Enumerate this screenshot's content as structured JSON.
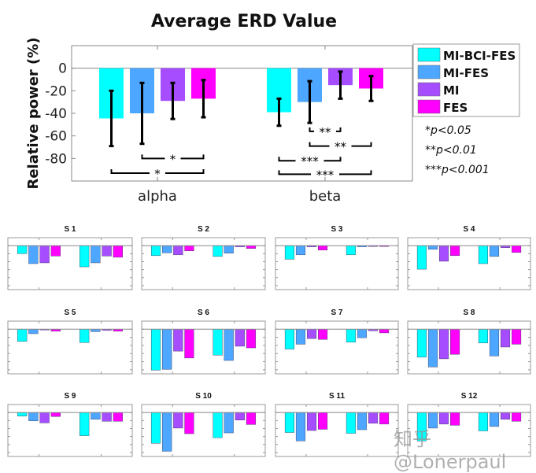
{
  "colors": {
    "MI-BCI-FES": "#00FFFF",
    "MI-FES": "#4DA6FF",
    "MI": "#A64DFF",
    "FES": "#FF00FF"
  },
  "watermark": "知乎 @Lonerpaul",
  "chart_data": [
    {
      "type": "bar",
      "title": "Average ERD Value",
      "ylabel": "Relative power (%)",
      "xlabel": "",
      "categories": [
        "alpha",
        "beta"
      ],
      "ylim": [
        -100,
        20
      ],
      "yticks": [
        0,
        -20,
        -40,
        -60,
        -80
      ],
      "grid": false,
      "legend_position": "right",
      "series": [
        {
          "name": "MI-BCI-FES",
          "values": [
            -44.5,
            -39
          ],
          "error": [
            24.5,
            12
          ]
        },
        {
          "name": "MI-FES",
          "values": [
            -40,
            -30
          ],
          "error": [
            27,
            18.5
          ]
        },
        {
          "name": "MI",
          "values": [
            -29,
            -15
          ],
          "error": [
            16,
            12
          ]
        },
        {
          "name": "FES",
          "values": [
            -27,
            -18
          ],
          "error": [
            16.5,
            11
          ]
        }
      ],
      "significance": [
        {
          "category": "alpha",
          "from": "MI-FES",
          "to": "FES",
          "label": "*",
          "level": -80
        },
        {
          "category": "alpha",
          "from": "MI-BCI-FES",
          "to": "FES",
          "label": "*",
          "level": -93
        },
        {
          "category": "beta",
          "from": "MI-FES",
          "to": "MI",
          "label": "**",
          "level": -56
        },
        {
          "category": "beta",
          "from": "MI-FES",
          "to": "FES",
          "label": "**",
          "level": -69
        },
        {
          "category": "beta",
          "from": "MI-BCI-FES",
          "to": "MI",
          "label": "***",
          "level": -82
        },
        {
          "category": "beta",
          "from": "MI-BCI-FES",
          "to": "FES",
          "label": "***",
          "level": -94
        }
      ],
      "notes": [
        "*p<0.05",
        "**p<0.01",
        "***p<0.001"
      ]
    },
    {
      "type": "bar",
      "subplots": [
        {
          "title": "S 1",
          "values": [
            [
              -20,
              -45,
              -43,
              -26
            ],
            [
              -53,
              -43,
              -26,
              -29
            ]
          ]
        },
        {
          "title": "S 2",
          "values": [
            [
              -25,
              -18,
              -23,
              -13
            ],
            [
              -27,
              -19,
              -3,
              -7
            ]
          ]
        },
        {
          "title": "S 3",
          "values": [
            [
              -34,
              -23,
              -3,
              -11
            ],
            [
              -23,
              -3,
              -2,
              -2
            ]
          ]
        },
        {
          "title": "S 4",
          "values": [
            [
              -59,
              -9,
              -39,
              -25
            ],
            [
              -45,
              -27,
              -5,
              -17
            ]
          ]
        },
        {
          "title": "S 5",
          "values": [
            [
              -30,
              -11,
              -2,
              -5
            ],
            [
              -33,
              -6,
              -3,
              -5
            ]
          ]
        },
        {
          "title": "S 6",
          "values": [
            [
              -101,
              -99,
              -54,
              -71
            ],
            [
              -64,
              -77,
              -42,
              -46
            ]
          ]
        },
        {
          "title": "S 7",
          "values": [
            [
              -49,
              -37,
              -23,
              -25
            ],
            [
              -32,
              -21,
              -4,
              -9
            ]
          ]
        },
        {
          "title": "S 8",
          "values": [
            [
              -69,
              -93,
              -73,
              -62
            ],
            [
              -34,
              -66,
              -44,
              -37
            ]
          ]
        },
        {
          "title": "S 9",
          "values": [
            [
              -9,
              -21,
              -26,
              -10
            ],
            [
              -58,
              -17,
              -22,
              -22
            ]
          ]
        },
        {
          "title": "S 10",
          "values": [
            [
              -77,
              -97,
              -39,
              -53
            ],
            [
              -63,
              -51,
              -19,
              -30
            ]
          ]
        },
        {
          "title": "S 11",
          "values": [
            [
              -50,
              -71,
              -45,
              -42
            ],
            [
              -52,
              -43,
              -27,
              -29
            ]
          ]
        },
        {
          "title": "S 12",
          "values": [
            [
              -71,
              -39,
              -29,
              -32
            ],
            [
              -46,
              -35,
              -17,
              -22
            ]
          ]
        }
      ],
      "ylim": [
        -110,
        20
      ]
    }
  ]
}
